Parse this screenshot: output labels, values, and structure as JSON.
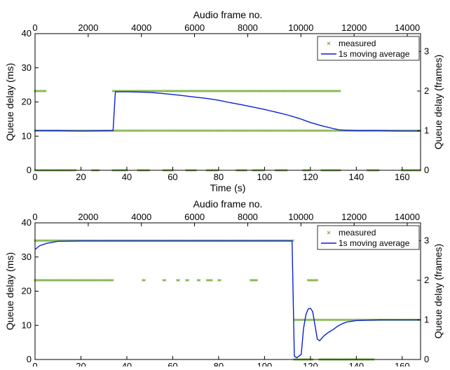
{
  "chart_data": [
    {
      "type": "line",
      "xlabel": "Time (s)",
      "ylabel": "Queue delay (ms)",
      "x2label": "Audio frame no.",
      "y2label": "Queue delay (frames)",
      "xlim": [
        0,
        168
      ],
      "ylim": [
        0,
        40
      ],
      "x2lim": [
        0,
        14500
      ],
      "y2lim": [
        0,
        3.45
      ],
      "xticks": [
        0,
        20,
        40,
        60,
        80,
        100,
        120,
        140,
        160
      ],
      "yticks": [
        0,
        10,
        20,
        30,
        40
      ],
      "x2ticks": [
        0,
        2000,
        4000,
        6000,
        8000,
        10000,
        12000,
        14000
      ],
      "y2ticks": [
        0,
        1,
        2,
        3
      ],
      "grid": false,
      "legend": "top-right",
      "colors": {
        "measured": "#7cb342",
        "average": "#0a1fd6"
      },
      "series": [
        {
          "name": "measured",
          "kind": "scatter",
          "bands": [
            {
              "y": 23.2,
              "ranges": [
                [
                  0,
                  5
                ],
                [
                  34,
                  133
                ]
              ]
            },
            {
              "y": 11.6,
              "ranges": [
                [
                  0,
                  168
                ]
              ]
            },
            {
              "y": 0,
              "ranges": [
                [
                  0,
                  18
                ],
                [
                  25,
                  28
                ],
                [
                  34,
                  40
                ],
                [
                  45,
                  50
                ],
                [
                  56,
                  60
                ],
                [
                  66,
                  70
                ],
                [
                  75,
                  80
                ],
                [
                  88,
                  92
                ],
                [
                  95,
                  100
                ],
                [
                  105,
                  110
                ],
                [
                  117,
                  120
                ],
                [
                  125,
                  133
                ],
                [
                  145,
                  150
                ],
                [
                  160,
                  168
                ]
              ]
            }
          ]
        },
        {
          "name": "1s moving average",
          "kind": "line",
          "x": [
            0,
            10,
            20,
            34,
            35,
            40,
            50,
            55,
            60,
            65,
            70,
            75,
            80,
            85,
            90,
            95,
            100,
            105,
            110,
            115,
            120,
            125,
            130,
            133,
            140,
            150,
            160,
            168
          ],
          "y": [
            11.6,
            11.6,
            11.5,
            11.6,
            23.0,
            23.0,
            22.8,
            22.5,
            22.2,
            21.8,
            21.4,
            21.0,
            20.5,
            19.8,
            19.2,
            18.5,
            17.8,
            17.0,
            16.2,
            15.2,
            14.0,
            13.0,
            12.2,
            11.8,
            11.6,
            11.6,
            11.5,
            11.5
          ]
        }
      ]
    },
    {
      "type": "line",
      "xlabel": "Time (s)",
      "ylabel": "Queue delay (ms)",
      "x2label": "Audio frame no.",
      "y2label": "Queue delay (frames)",
      "xlim": [
        0,
        168
      ],
      "ylim": [
        0,
        40
      ],
      "x2lim": [
        0,
        14500
      ],
      "y2lim": [
        0,
        3.45
      ],
      "xticks": [
        0,
        20,
        40,
        60,
        80,
        100,
        120,
        140,
        160
      ],
      "yticks": [
        0,
        10,
        20,
        30,
        40
      ],
      "x2ticks": [
        0,
        2000,
        4000,
        6000,
        8000,
        10000,
        12000,
        14000
      ],
      "y2ticks": [
        0,
        1,
        2,
        3
      ],
      "grid": false,
      "legend": "top-right",
      "colors": {
        "measured": "#7cb342",
        "average": "#0a1fd6"
      },
      "series": [
        {
          "name": "measured",
          "kind": "scatter",
          "bands": [
            {
              "y": 34.8,
              "ranges": [
                [
                  0,
                  113
                ]
              ]
            },
            {
              "y": 23.2,
              "ranges": [
                [
                  0,
                  34
                ],
                [
                  47,
                  48
                ],
                [
                  56,
                  57
                ],
                [
                  62,
                  63
                ],
                [
                  66,
                  67
                ],
                [
                  71,
                  72
                ],
                [
                  75,
                  77
                ],
                [
                  80,
                  81
                ],
                [
                  94,
                  97
                ],
                [
                  119,
                  123
                ]
              ]
            },
            {
              "y": 11.6,
              "ranges": [
                [
                  113,
                  168
                ]
              ]
            },
            {
              "y": 0,
              "ranges": [
                [
                  113,
                  121
                ],
                [
                  124,
                  148
                ]
              ]
            }
          ]
        },
        {
          "name": "1s moving average",
          "kind": "line",
          "x": [
            0,
            2,
            5,
            10,
            20,
            40,
            60,
            80,
            100,
            112,
            113,
            114,
            116,
            117,
            118,
            119,
            120,
            121,
            122,
            123,
            124,
            126,
            128,
            130,
            132,
            134,
            136,
            140,
            150,
            168
          ],
          "y": [
            32.2,
            33.3,
            34.0,
            34.6,
            34.7,
            34.7,
            34.7,
            34.7,
            34.7,
            34.7,
            1.0,
            0.5,
            1.5,
            9.0,
            13.0,
            14.8,
            15.0,
            14.0,
            10.0,
            6.0,
            5.5,
            7.0,
            8.0,
            8.8,
            9.8,
            10.5,
            11.0,
            11.4,
            11.6,
            11.6
          ]
        }
      ]
    }
  ]
}
